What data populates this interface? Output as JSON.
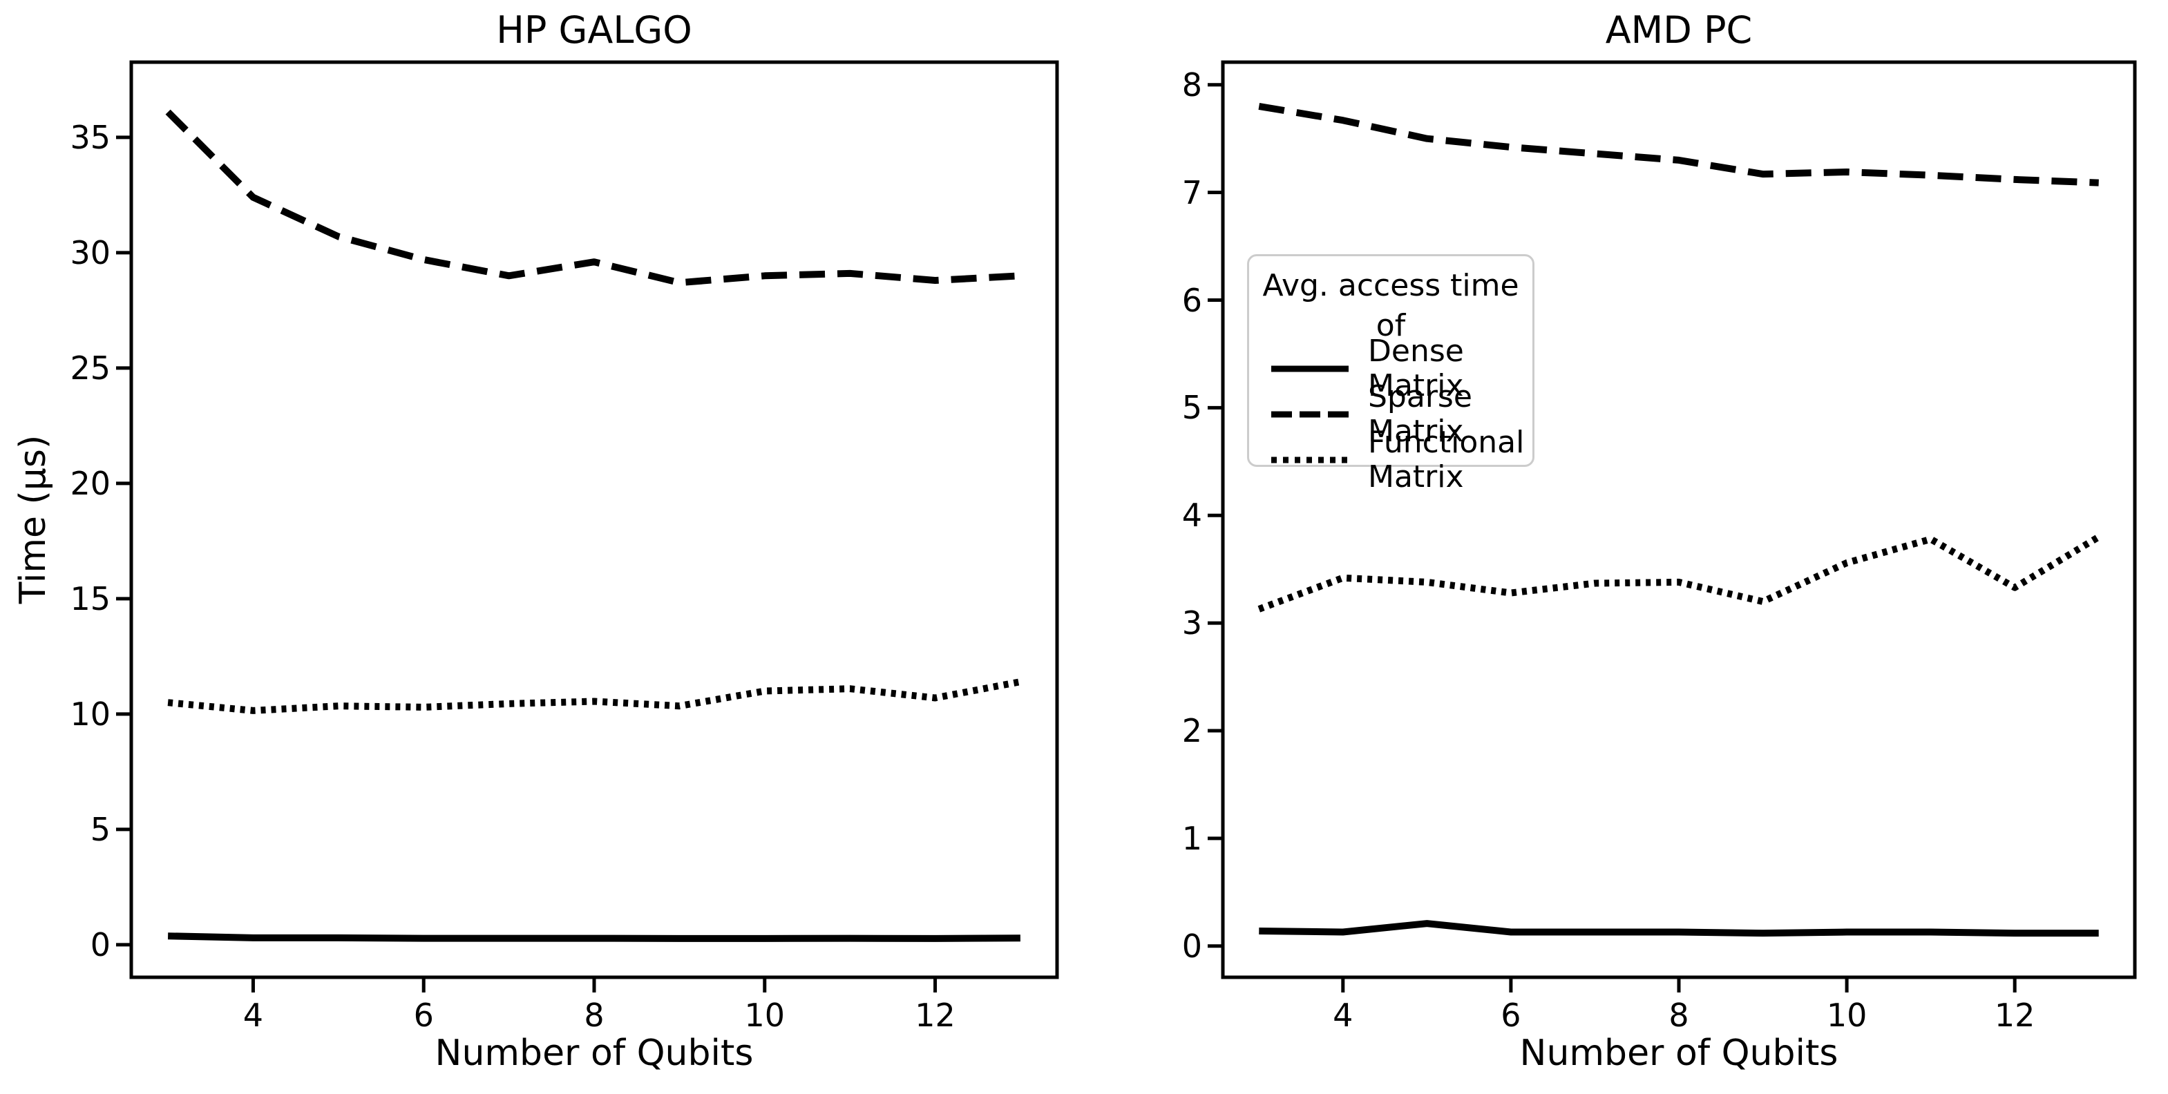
{
  "figure": {
    "background": "#ffffff",
    "line_color": "#000000",
    "legend_border_color": "#cccccc"
  },
  "legend": {
    "title": "Avg. access time of",
    "entries": [
      {
        "label": "Dense Matrix",
        "style": "solid"
      },
      {
        "label": "Sparse Matrix",
        "style": "dashed"
      },
      {
        "label": "Functional Matrix",
        "style": "dotted"
      }
    ]
  },
  "chart_data": [
    {
      "type": "line",
      "title": "HP GALGO",
      "xlabel": "Number of Qubits",
      "ylabel": "Time (µs)",
      "x": [
        3,
        4,
        5,
        6,
        7,
        8,
        9,
        10,
        11,
        12,
        13
      ],
      "xticks": [
        4,
        6,
        8,
        10,
        12
      ],
      "yticks": [
        0,
        5,
        10,
        15,
        20,
        25,
        30,
        35
      ],
      "xlim": [
        2.57,
        13.43
      ],
      "ylim": [
        -1.41,
        38.26
      ],
      "grid": false,
      "legend_position": "none",
      "series": [
        {
          "name": "Dense Matrix",
          "style": "solid",
          "values": [
            0.38,
            0.3,
            0.3,
            0.28,
            0.28,
            0.28,
            0.27,
            0.27,
            0.28,
            0.27,
            0.29
          ]
        },
        {
          "name": "Sparse Matrix",
          "style": "dashed",
          "values": [
            36.1,
            32.4,
            30.7,
            29.7,
            29.0,
            29.6,
            28.7,
            29.0,
            29.1,
            28.8,
            29.0
          ]
        },
        {
          "name": "Functional Matrix",
          "style": "dotted",
          "values": [
            10.5,
            10.15,
            10.35,
            10.3,
            10.45,
            10.55,
            10.35,
            11.0,
            11.1,
            10.7,
            11.4
          ]
        }
      ]
    },
    {
      "type": "line",
      "title": "AMD PC",
      "xlabel": "Number of Qubits",
      "ylabel": "",
      "x": [
        3,
        4,
        5,
        6,
        7,
        8,
        9,
        10,
        11,
        12,
        13
      ],
      "xticks": [
        4,
        6,
        8,
        10,
        12
      ],
      "yticks": [
        0,
        1,
        2,
        3,
        4,
        5,
        6,
        7,
        8
      ],
      "xlim": [
        2.57,
        13.43
      ],
      "ylim": [
        -0.29,
        8.21
      ],
      "grid": false,
      "legend_position": "upper-left",
      "series": [
        {
          "name": "Dense Matrix",
          "style": "solid",
          "values": [
            0.14,
            0.13,
            0.21,
            0.13,
            0.13,
            0.13,
            0.12,
            0.13,
            0.13,
            0.12,
            0.12
          ]
        },
        {
          "name": "Sparse Matrix",
          "style": "dashed",
          "values": [
            7.8,
            7.67,
            7.5,
            7.42,
            7.36,
            7.3,
            7.17,
            7.19,
            7.16,
            7.12,
            7.09
          ]
        },
        {
          "name": "Functional Matrix",
          "style": "dotted",
          "values": [
            3.13,
            3.42,
            3.38,
            3.28,
            3.37,
            3.38,
            3.2,
            3.56,
            3.78,
            3.33,
            3.8
          ]
        }
      ]
    }
  ]
}
